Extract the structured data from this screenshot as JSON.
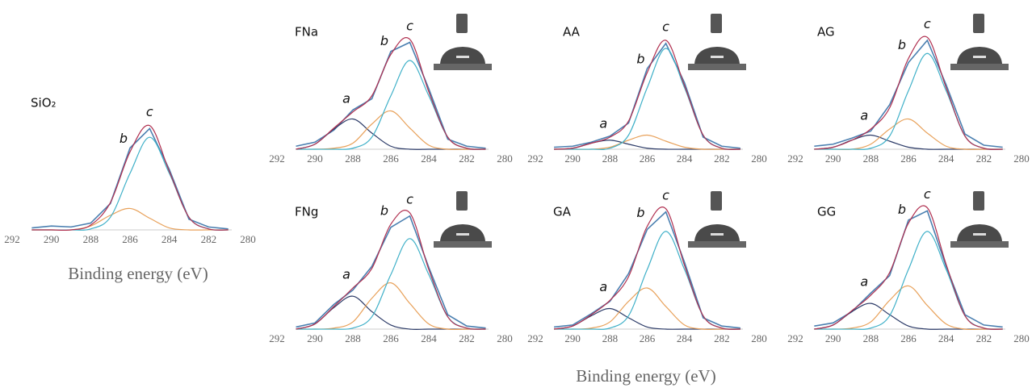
{
  "xlabel": "Binding energy (eV)",
  "chart_data": [
    {
      "type": "line",
      "title": "SiO₂",
      "xlabel": "Binding energy (eV)",
      "xlim": [
        292,
        280
      ],
      "xticks": [
        292,
        290,
        288,
        286,
        284,
        282,
        280
      ],
      "ylim": [
        0,
        120
      ],
      "x": [
        291,
        290,
        289,
        288,
        287,
        286,
        285,
        284,
        283,
        282,
        281
      ],
      "series": [
        {
          "color": "#4a7fb0",
          "values": [
            2,
            4,
            3,
            7,
            27,
            84,
            104,
            62,
            11,
            3,
            1
          ]
        },
        {
          "name": "b",
          "color": "#e8a15a",
          "values": [
            0,
            0,
            0,
            4,
            15,
            22,
            12,
            2,
            0,
            0,
            0
          ]
        },
        {
          "name": "c",
          "color": "#3fb0c8",
          "values": [
            0,
            0,
            0,
            1,
            13,
            58,
            95,
            58,
            13,
            1,
            0
          ]
        },
        {
          "color": "#b03050",
          "values": [
            0,
            0,
            0,
            5,
            28,
            80,
            107,
            60,
            13,
            1,
            0
          ]
        }
      ]
    },
    {
      "type": "line",
      "title": "FNa",
      "xlim": [
        292,
        280
      ],
      "xticks": [
        292,
        290,
        288,
        286,
        284,
        282,
        280
      ],
      "ylim": [
        0,
        120
      ],
      "x": [
        291,
        290,
        289,
        288,
        287,
        286,
        285,
        284,
        283,
        282,
        281
      ],
      "series": [
        {
          "color": "#4a7fb0",
          "values": [
            3,
            7,
            19,
            39,
            50,
            97,
            106,
            60,
            10,
            3,
            1
          ]
        },
        {
          "name": "a",
          "color": "#2b3a67",
          "values": [
            0,
            5,
            20,
            30,
            16,
            3,
            0,
            0,
            0,
            0,
            0
          ]
        },
        {
          "name": "b",
          "color": "#e8a15a",
          "values": [
            0,
            0,
            1,
            6,
            25,
            38,
            21,
            4,
            0,
            0,
            0
          ]
        },
        {
          "name": "c",
          "color": "#3fb0c8",
          "values": [
            0,
            0,
            0,
            1,
            12,
            53,
            88,
            53,
            12,
            1,
            0
          ]
        },
        {
          "color": "#b03050",
          "values": [
            0,
            5,
            21,
            37,
            53,
            94,
            109,
            57,
            12,
            1,
            0
          ]
        }
      ]
    },
    {
      "type": "line",
      "title": "AA",
      "xlim": [
        292,
        280
      ],
      "xticks": [
        292,
        290,
        288,
        286,
        284,
        282,
        280
      ],
      "ylim": [
        0,
        120
      ],
      "x": [
        291,
        290,
        289,
        288,
        287,
        286,
        285,
        284,
        283,
        282,
        281
      ],
      "series": [
        {
          "color": "#4a7fb0",
          "values": [
            2,
            3,
            7,
            13,
            26,
            80,
            105,
            66,
            12,
            3,
            1
          ]
        },
        {
          "name": "a",
          "color": "#2b3a67",
          "values": [
            0,
            1,
            6,
            9,
            5,
            1,
            0,
            0,
            0,
            0,
            0
          ]
        },
        {
          "name": "b",
          "color": "#e8a15a",
          "values": [
            0,
            0,
            0,
            2,
            9,
            14,
            8,
            2,
            0,
            0,
            0
          ]
        },
        {
          "name": "c",
          "color": "#3fb0c8",
          "values": [
            0,
            0,
            0,
            1,
            14,
            61,
            100,
            61,
            14,
            1,
            0
          ]
        },
        {
          "color": "#b03050",
          "values": [
            0,
            1,
            6,
            12,
            28,
            76,
            108,
            63,
            14,
            1,
            0
          ]
        }
      ]
    },
    {
      "type": "line",
      "title": "AG",
      "xlim": [
        292,
        280
      ],
      "xticks": [
        292,
        290,
        288,
        286,
        284,
        282,
        280
      ],
      "ylim": [
        0,
        120
      ],
      "x": [
        291,
        290,
        289,
        288,
        287,
        286,
        285,
        284,
        283,
        282,
        281
      ],
      "series": [
        {
          "color": "#4a7fb0",
          "values": [
            3,
            5,
            11,
            18,
            44,
            86,
            108,
            64,
            15,
            4,
            2
          ]
        },
        {
          "name": "a",
          "color": "#2b3a67",
          "values": [
            0,
            2,
            9,
            14,
            8,
            2,
            0,
            0,
            0,
            0,
            0
          ]
        },
        {
          "name": "b",
          "color": "#e8a15a",
          "values": [
            0,
            0,
            0,
            5,
            20,
            30,
            16,
            3,
            0,
            0,
            0
          ]
        },
        {
          "name": "c",
          "color": "#3fb0c8",
          "values": [
            0,
            0,
            0,
            1,
            13,
            58,
            95,
            58,
            13,
            1,
            0
          ]
        },
        {
          "color": "#b03050",
          "values": [
            0,
            2,
            9,
            20,
            41,
            90,
            111,
            61,
            13,
            1,
            0
          ]
        }
      ]
    },
    {
      "type": "line",
      "title": "FNg",
      "xlim": [
        292,
        280
      ],
      "xticks": [
        292,
        290,
        288,
        286,
        284,
        282,
        280
      ],
      "ylim": [
        0,
        120
      ],
      "x": [
        291,
        290,
        289,
        288,
        287,
        286,
        285,
        284,
        283,
        282,
        281
      ],
      "series": [
        {
          "color": "#4a7fb0",
          "values": [
            2,
            6,
            24,
            38,
            61,
            99,
            110,
            60,
            14,
            3,
            1
          ]
        },
        {
          "name": "a",
          "color": "#2b3a67",
          "values": [
            0,
            5,
            21,
            32,
            17,
            4,
            0,
            0,
            0,
            0,
            0
          ]
        },
        {
          "name": "b",
          "color": "#e8a15a",
          "values": [
            0,
            0,
            1,
            7,
            30,
            45,
            25,
            5,
            0,
            0,
            0
          ]
        },
        {
          "name": "c",
          "color": "#3fb0c8",
          "values": [
            0,
            0,
            0,
            1,
            12,
            53,
            88,
            53,
            12,
            1,
            0
          ]
        },
        {
          "color": "#b03050",
          "values": [
            0,
            5,
            22,
            40,
            59,
            102,
            113,
            58,
            12,
            1,
            0
          ]
        }
      ]
    },
    {
      "type": "line",
      "title": "GA",
      "xlim": [
        292,
        280
      ],
      "xticks": [
        292,
        290,
        288,
        286,
        284,
        282,
        280
      ],
      "ylim": [
        0,
        120
      ],
      "x": [
        291,
        290,
        289,
        288,
        287,
        286,
        285,
        284,
        283,
        282,
        281
      ],
      "series": [
        {
          "color": "#4a7fb0",
          "values": [
            2,
            4,
            15,
            27,
            54,
            97,
            114,
            65,
            11,
            3,
            1
          ]
        },
        {
          "name": "a",
          "color": "#2b3a67",
          "values": [
            0,
            3,
            13,
            20,
            11,
            2,
            0,
            0,
            0,
            0,
            0
          ]
        },
        {
          "name": "b",
          "color": "#e8a15a",
          "values": [
            0,
            0,
            1,
            7,
            27,
            40,
            22,
            4,
            0,
            0,
            0
          ]
        },
        {
          "name": "c",
          "color": "#3fb0c8",
          "values": [
            0,
            0,
            0,
            1,
            13,
            58,
            95,
            58,
            13,
            1,
            0
          ]
        },
        {
          "color": "#b03050",
          "values": [
            0,
            3,
            14,
            28,
            51,
            100,
            117,
            62,
            13,
            1,
            0
          ]
        }
      ]
    },
    {
      "type": "line",
      "title": "GG",
      "xlim": [
        292,
        280
      ],
      "xticks": [
        292,
        290,
        288,
        286,
        284,
        282,
        280
      ],
      "ylim": [
        0,
        120
      ],
      "x": [
        291,
        290,
        289,
        288,
        287,
        286,
        285,
        284,
        283,
        282,
        281
      ],
      "series": [
        {
          "color": "#4a7fb0",
          "values": [
            3,
            6,
            17,
            35,
            52,
            106,
            115,
            61,
            14,
            4,
            2
          ]
        },
        {
          "name": "a",
          "color": "#2b3a67",
          "values": [
            0,
            4,
            17,
            25,
            14,
            3,
            0,
            0,
            0,
            0,
            0
          ]
        },
        {
          "name": "b",
          "color": "#e8a15a",
          "values": [
            0,
            0,
            1,
            7,
            28,
            42,
            23,
            5,
            0,
            0,
            0
          ]
        },
        {
          "name": "c",
          "color": "#3fb0c8",
          "values": [
            0,
            0,
            0,
            1,
            13,
            58,
            95,
            58,
            13,
            1,
            0
          ]
        },
        {
          "color": "#b03050",
          "values": [
            0,
            4,
            18,
            33,
            55,
            103,
            118,
            63,
            13,
            1,
            0
          ]
        }
      ]
    }
  ]
}
